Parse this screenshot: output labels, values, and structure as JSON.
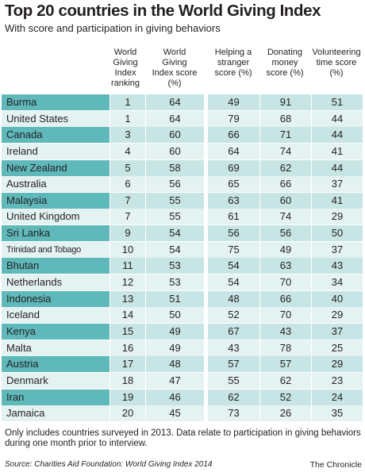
{
  "header": {
    "title": "Top 20 countries in the World Giving Index",
    "subtitle": "With score and participation in giving behaviors"
  },
  "chart_data": {
    "type": "table",
    "title": "Top 20 countries in the World Giving Index",
    "subtitle": "With score and participation in giving behaviors",
    "columns": [
      "World Giving Index ranking",
      "World Giving Index score (%)",
      "Helping a stranger score (%)",
      "Donating money score (%)",
      "Volunteering time score (%)"
    ],
    "rows": [
      {
        "country": "Burma",
        "rank": 1,
        "wgi": 64,
        "helping": 49,
        "donating": 91,
        "volunteering": 51
      },
      {
        "country": "United States",
        "rank": 1,
        "wgi": 64,
        "helping": 79,
        "donating": 68,
        "volunteering": 44
      },
      {
        "country": "Canada",
        "rank": 3,
        "wgi": 60,
        "helping": 66,
        "donating": 71,
        "volunteering": 44
      },
      {
        "country": "Ireland",
        "rank": 4,
        "wgi": 60,
        "helping": 64,
        "donating": 74,
        "volunteering": 41
      },
      {
        "country": "New Zealand",
        "rank": 5,
        "wgi": 58,
        "helping": 69,
        "donating": 62,
        "volunteering": 44
      },
      {
        "country": "Australia",
        "rank": 6,
        "wgi": 56,
        "helping": 65,
        "donating": 66,
        "volunteering": 37
      },
      {
        "country": "Malaysia",
        "rank": 7,
        "wgi": 55,
        "helping": 63,
        "donating": 60,
        "volunteering": 41
      },
      {
        "country": "United Kingdom",
        "rank": 7,
        "wgi": 55,
        "helping": 61,
        "donating": 74,
        "volunteering": 29
      },
      {
        "country": "Sri Lanka",
        "rank": 9,
        "wgi": 54,
        "helping": 56,
        "donating": 56,
        "volunteering": 50
      },
      {
        "country": "Trinidad and Tobago",
        "rank": 10,
        "wgi": 54,
        "helping": 75,
        "donating": 49,
        "volunteering": 37
      },
      {
        "country": "Bhutan",
        "rank": 11,
        "wgi": 53,
        "helping": 54,
        "donating": 63,
        "volunteering": 43
      },
      {
        "country": "Netherlands",
        "rank": 12,
        "wgi": 53,
        "helping": 54,
        "donating": 70,
        "volunteering": 34
      },
      {
        "country": "Indonesia",
        "rank": 13,
        "wgi": 51,
        "helping": 48,
        "donating": 66,
        "volunteering": 40
      },
      {
        "country": "Iceland",
        "rank": 14,
        "wgi": 50,
        "helping": 52,
        "donating": 70,
        "volunteering": 29
      },
      {
        "country": "Kenya",
        "rank": 15,
        "wgi": 49,
        "helping": 67,
        "donating": 43,
        "volunteering": 37
      },
      {
        "country": "Malta",
        "rank": 16,
        "wgi": 49,
        "helping": 43,
        "donating": 78,
        "volunteering": 25
      },
      {
        "country": "Austria",
        "rank": 17,
        "wgi": 48,
        "helping": 57,
        "donating": 57,
        "volunteering": 29
      },
      {
        "country": "Denmark",
        "rank": 18,
        "wgi": 47,
        "helping": 55,
        "donating": 62,
        "volunteering": 23
      },
      {
        "country": "Iran",
        "rank": 19,
        "wgi": 46,
        "helping": 62,
        "donating": 52,
        "volunteering": 24
      },
      {
        "country": "Jamaica",
        "rank": 20,
        "wgi": 45,
        "helping": 73,
        "donating": 26,
        "volunteering": 35
      }
    ],
    "colors": {
      "country_dark": "#5fb8ba",
      "value_dark": "#c7e5e5",
      "light": "#e4f2f2"
    }
  },
  "footer": {
    "note": "Only includes countries surveyed in 2013. Data relate to participation in giving behaviors during one month prior to interview.",
    "source": "Source: Charities Aid Foundation: World Giving Index 2014",
    "credit": "The Chronicle"
  }
}
